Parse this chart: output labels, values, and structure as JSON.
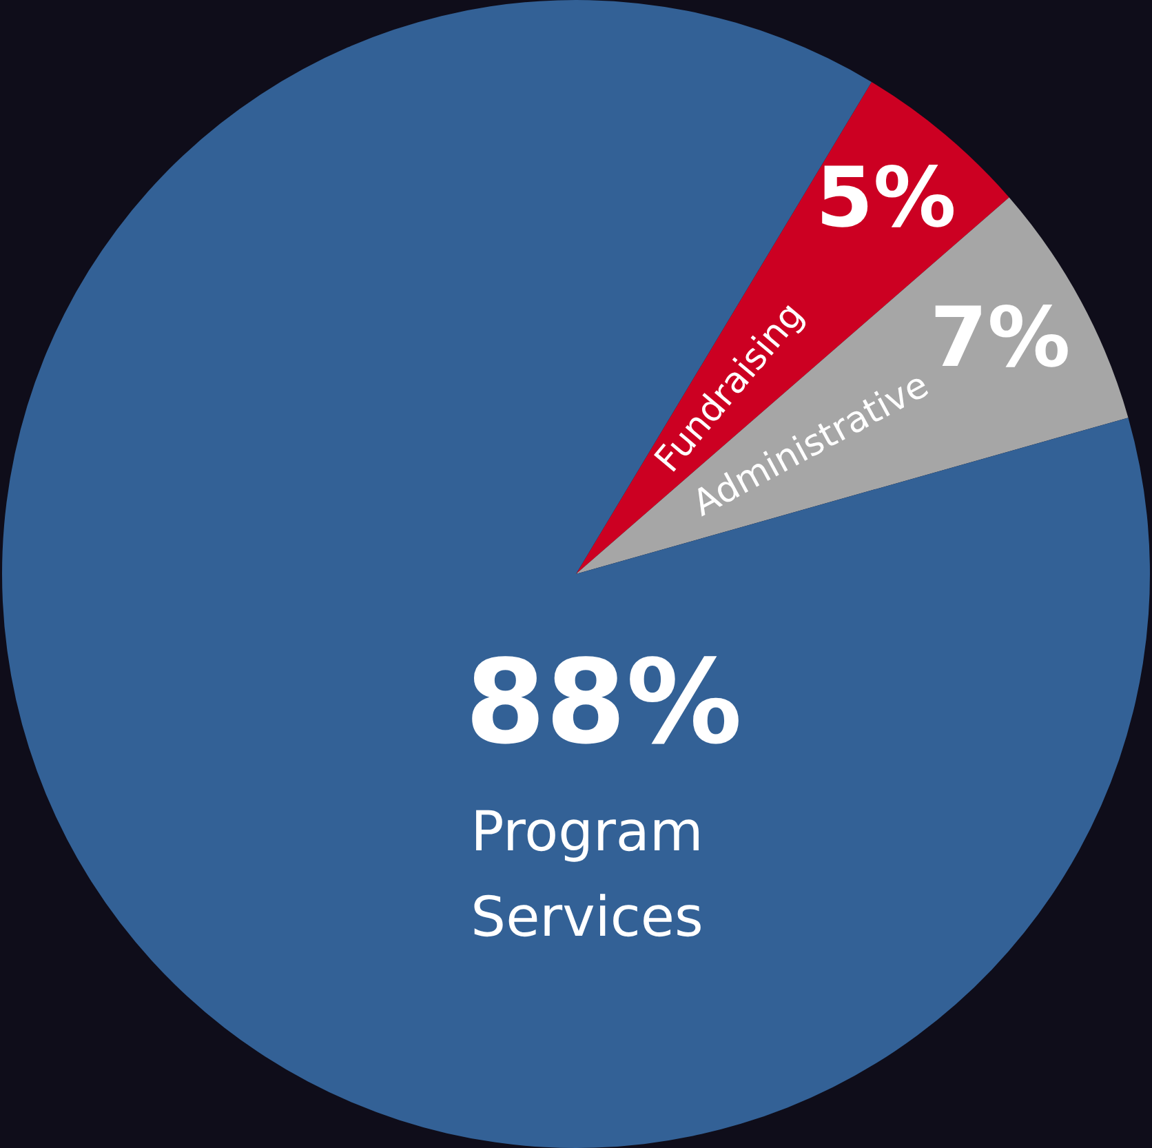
{
  "chart_data": {
    "type": "pie",
    "categories": [
      "Fundraising",
      "Administrative",
      "Program Services"
    ],
    "values": [
      5,
      7,
      88
    ],
    "colors": [
      "#cc0022",
      "#a6a6a6",
      "#336196"
    ],
    "value_labels": [
      "5%",
      "7%",
      "88%"
    ]
  }
}
